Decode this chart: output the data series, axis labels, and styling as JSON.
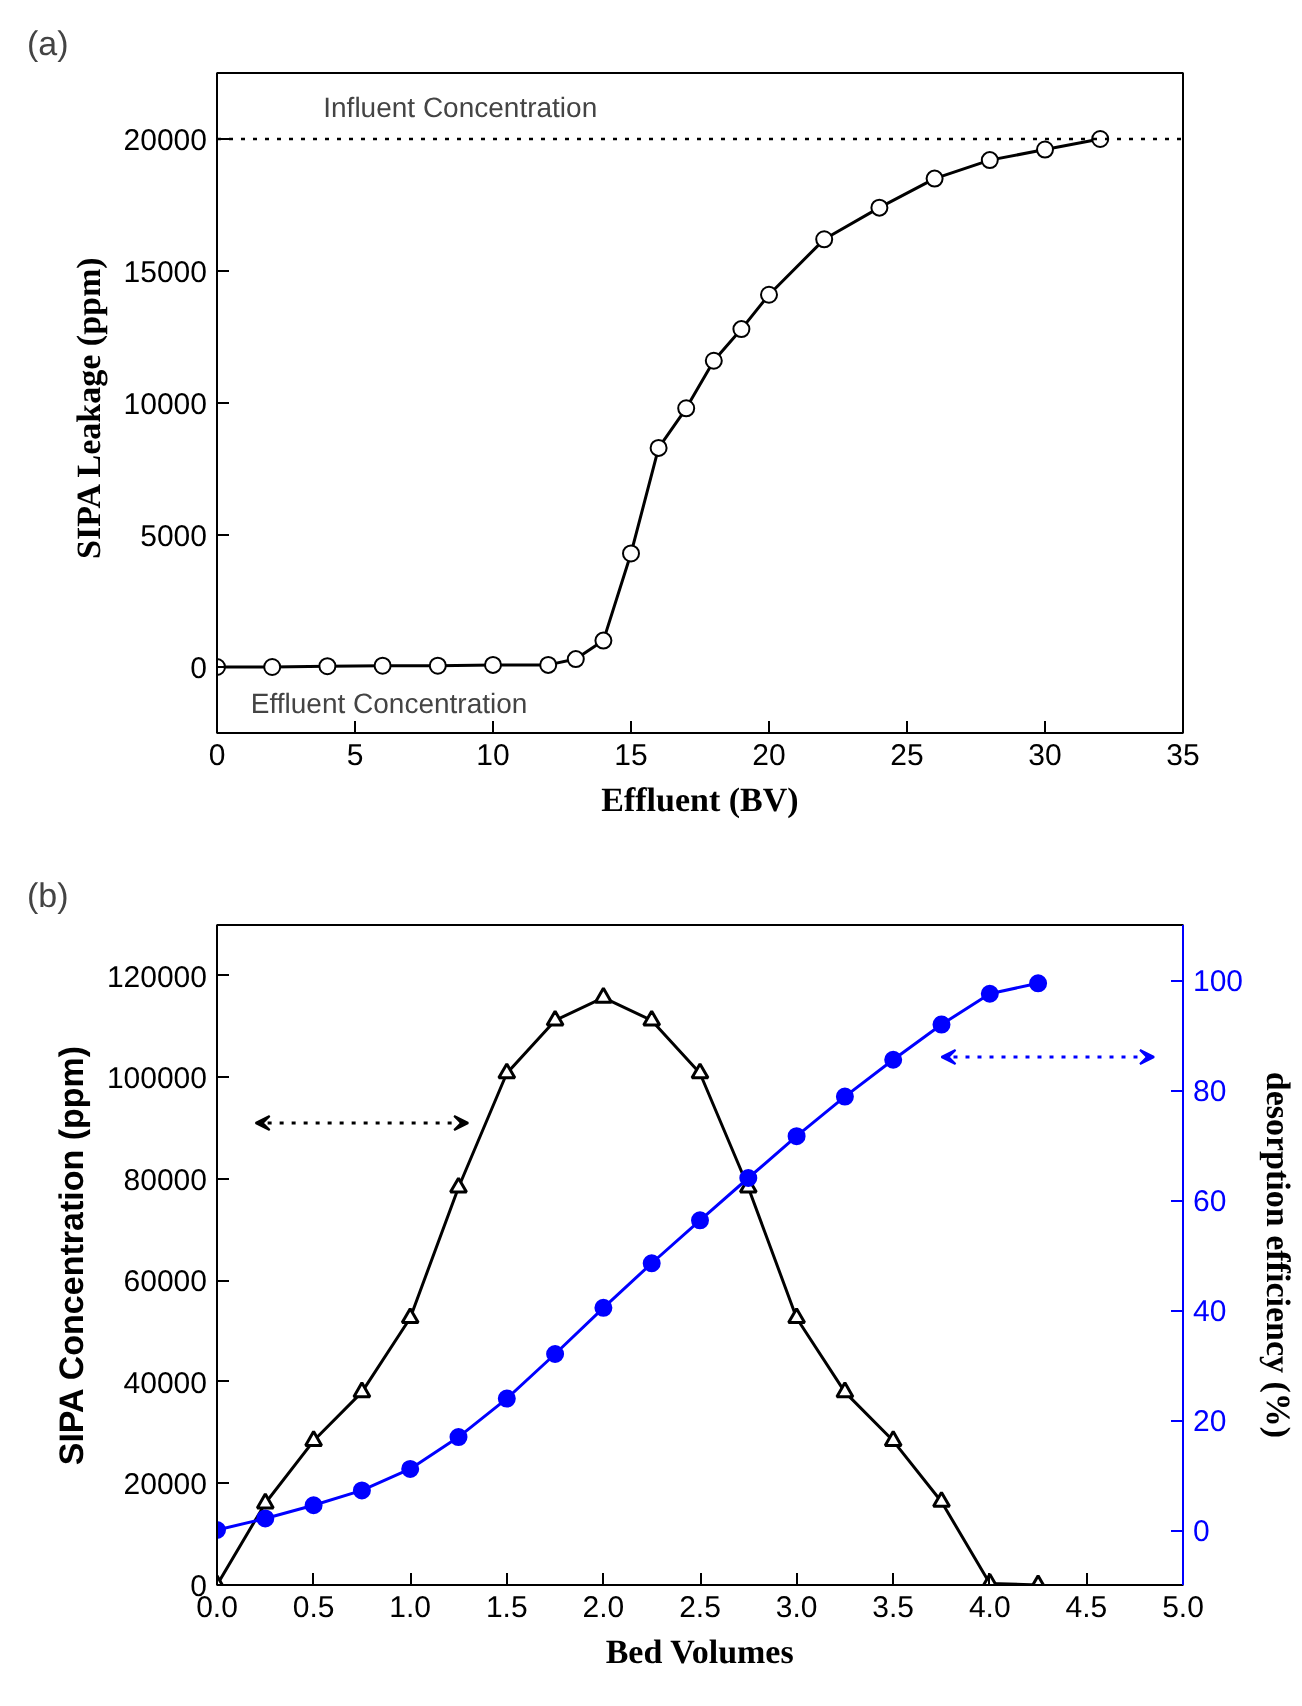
{
  "chart_data": [
    {
      "type": "line",
      "title": "(a)",
      "xlabel": "Effluent (BV)",
      "ylabel": "SIPA  Leakage (ppm)",
      "x": [
        0,
        2,
        4,
        6,
        8,
        10,
        12,
        13,
        14,
        15,
        16,
        17,
        18,
        19,
        20,
        22,
        24,
        26,
        28,
        30,
        32
      ],
      "series": [
        {
          "color": "#000000",
          "marker": "circle",
          "values": [
            0,
            0,
            30,
            50,
            50,
            80,
            80,
            300,
            1000,
            4300,
            8300,
            9800,
            11600,
            12800,
            14100,
            16200,
            17400,
            18500,
            19200,
            19600,
            20000
          ]
        }
      ],
      "xlim": [
        0,
        35
      ],
      "xticks": [
        0,
        5,
        10,
        15,
        20,
        25,
        30,
        35
      ],
      "ylim": [
        -2500,
        22500
      ],
      "yticks": [
        0,
        5000,
        10000,
        15000,
        20000
      ],
      "ref_lines": [
        {
          "axis": "y",
          "value": 20000,
          "label": "Influent Concentration",
          "line_style": "dotted",
          "color": "#000000"
        }
      ],
      "annotations": [
        "Effluent Concentration"
      ],
      "grid": false
    },
    {
      "type": "line",
      "title": "(b)",
      "xlabel": "Bed Volumes",
      "ylabel": "SIPA Concentration (ppm)",
      "y2label": "desorption efficiency (%)",
      "x": [
        0,
        0.25,
        0.5,
        0.75,
        1.0,
        1.25,
        1.5,
        1.75,
        2.0,
        2.25,
        2.5,
        2.75,
        3.0,
        3.25,
        3.5,
        3.75,
        4.0,
        4.25
      ],
      "series": [
        {
          "color": "#000000",
          "marker": "triangle",
          "values": [
            0,
            16100,
            28400,
            38000,
            52600,
            78300,
            100800,
            111200,
            115700,
            111200,
            100800,
            78300,
            52600,
            38000,
            28400,
            16400,
            300,
            0
          ]
        },
        {
          "color": "#0000ff",
          "marker": "circle",
          "axis": "y2",
          "values": [
            0,
            2.1,
            4.5,
            7.2,
            11.1,
            16.9,
            23.9,
            32.0,
            40.4,
            48.5,
            56.3,
            64.0,
            71.6,
            78.8,
            85.5,
            91.9,
            97.5,
            99.4
          ]
        }
      ],
      "xlim": [
        0,
        5
      ],
      "xticks": [
        {
          "value": 0,
          "label": "0.0"
        },
        {
          "value": 0.5,
          "label": "0.5"
        },
        {
          "value": 1,
          "label": "1.0"
        },
        {
          "value": 1.5,
          "label": "1.5"
        },
        {
          "value": 2,
          "label": "2.0"
        },
        {
          "value": 2.5,
          "label": "2.5"
        },
        {
          "value": 3,
          "label": "3.0"
        },
        {
          "value": 3.5,
          "label": "3.5"
        },
        {
          "value": 4,
          "label": "4.0"
        },
        {
          "value": 4.5,
          "label": "4.5"
        },
        {
          "value": 5,
          "label": "5.0"
        }
      ],
      "ylim": [
        0,
        130000
      ],
      "yticks": [
        0,
        20000,
        40000,
        60000,
        80000,
        100000,
        120000
      ],
      "y2lim": [
        -10,
        110
      ],
      "y2ticks": [
        0,
        20,
        40,
        60,
        80,
        100
      ],
      "grid": false
    }
  ]
}
